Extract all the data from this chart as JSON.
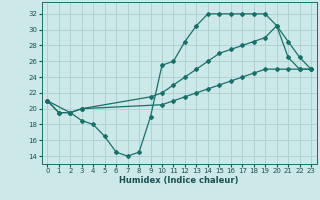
{
  "xlabel": "Humidex (Indice chaleur)",
  "background_color": "#cce8e8",
  "grid_color": "#aad0d0",
  "line_color": "#1a7068",
  "xlim": [
    -0.5,
    23.5
  ],
  "ylim": [
    13,
    33.5
  ],
  "xticks": [
    0,
    1,
    2,
    3,
    4,
    5,
    6,
    7,
    8,
    9,
    10,
    11,
    12,
    13,
    14,
    15,
    16,
    17,
    18,
    19,
    20,
    21,
    22,
    23
  ],
  "yticks": [
    14,
    16,
    18,
    20,
    22,
    24,
    26,
    28,
    30,
    32
  ],
  "line1_x": [
    0,
    1,
    2,
    3,
    4,
    5,
    6,
    7,
    8,
    9,
    10,
    11,
    12,
    13,
    14,
    15,
    16,
    17,
    18,
    19,
    20,
    21,
    22,
    23
  ],
  "line1_y": [
    21,
    19.5,
    19.5,
    18.5,
    18,
    16.5,
    14.5,
    14,
    14.5,
    19,
    25.5,
    26,
    28.5,
    30.5,
    32,
    32,
    32,
    32,
    32,
    32,
    30.5,
    28.5,
    26.5,
    25
  ],
  "line2_x": [
    0,
    1,
    2,
    3,
    9,
    10,
    11,
    12,
    13,
    14,
    15,
    16,
    17,
    18,
    19,
    20,
    21,
    22,
    23
  ],
  "line2_y": [
    21,
    19.5,
    19.5,
    20,
    21.5,
    22,
    23,
    24,
    25,
    26,
    27,
    27.5,
    28,
    28.5,
    29,
    30.5,
    26.5,
    25,
    25
  ],
  "line3_x": [
    0,
    2,
    3,
    10,
    11,
    12,
    13,
    14,
    15,
    16,
    17,
    18,
    19,
    20,
    21,
    22,
    23
  ],
  "line3_y": [
    21,
    19.5,
    20,
    20.5,
    21,
    21.5,
    22,
    22.5,
    23,
    23.5,
    24,
    24.5,
    25,
    25,
    25,
    25,
    25
  ]
}
